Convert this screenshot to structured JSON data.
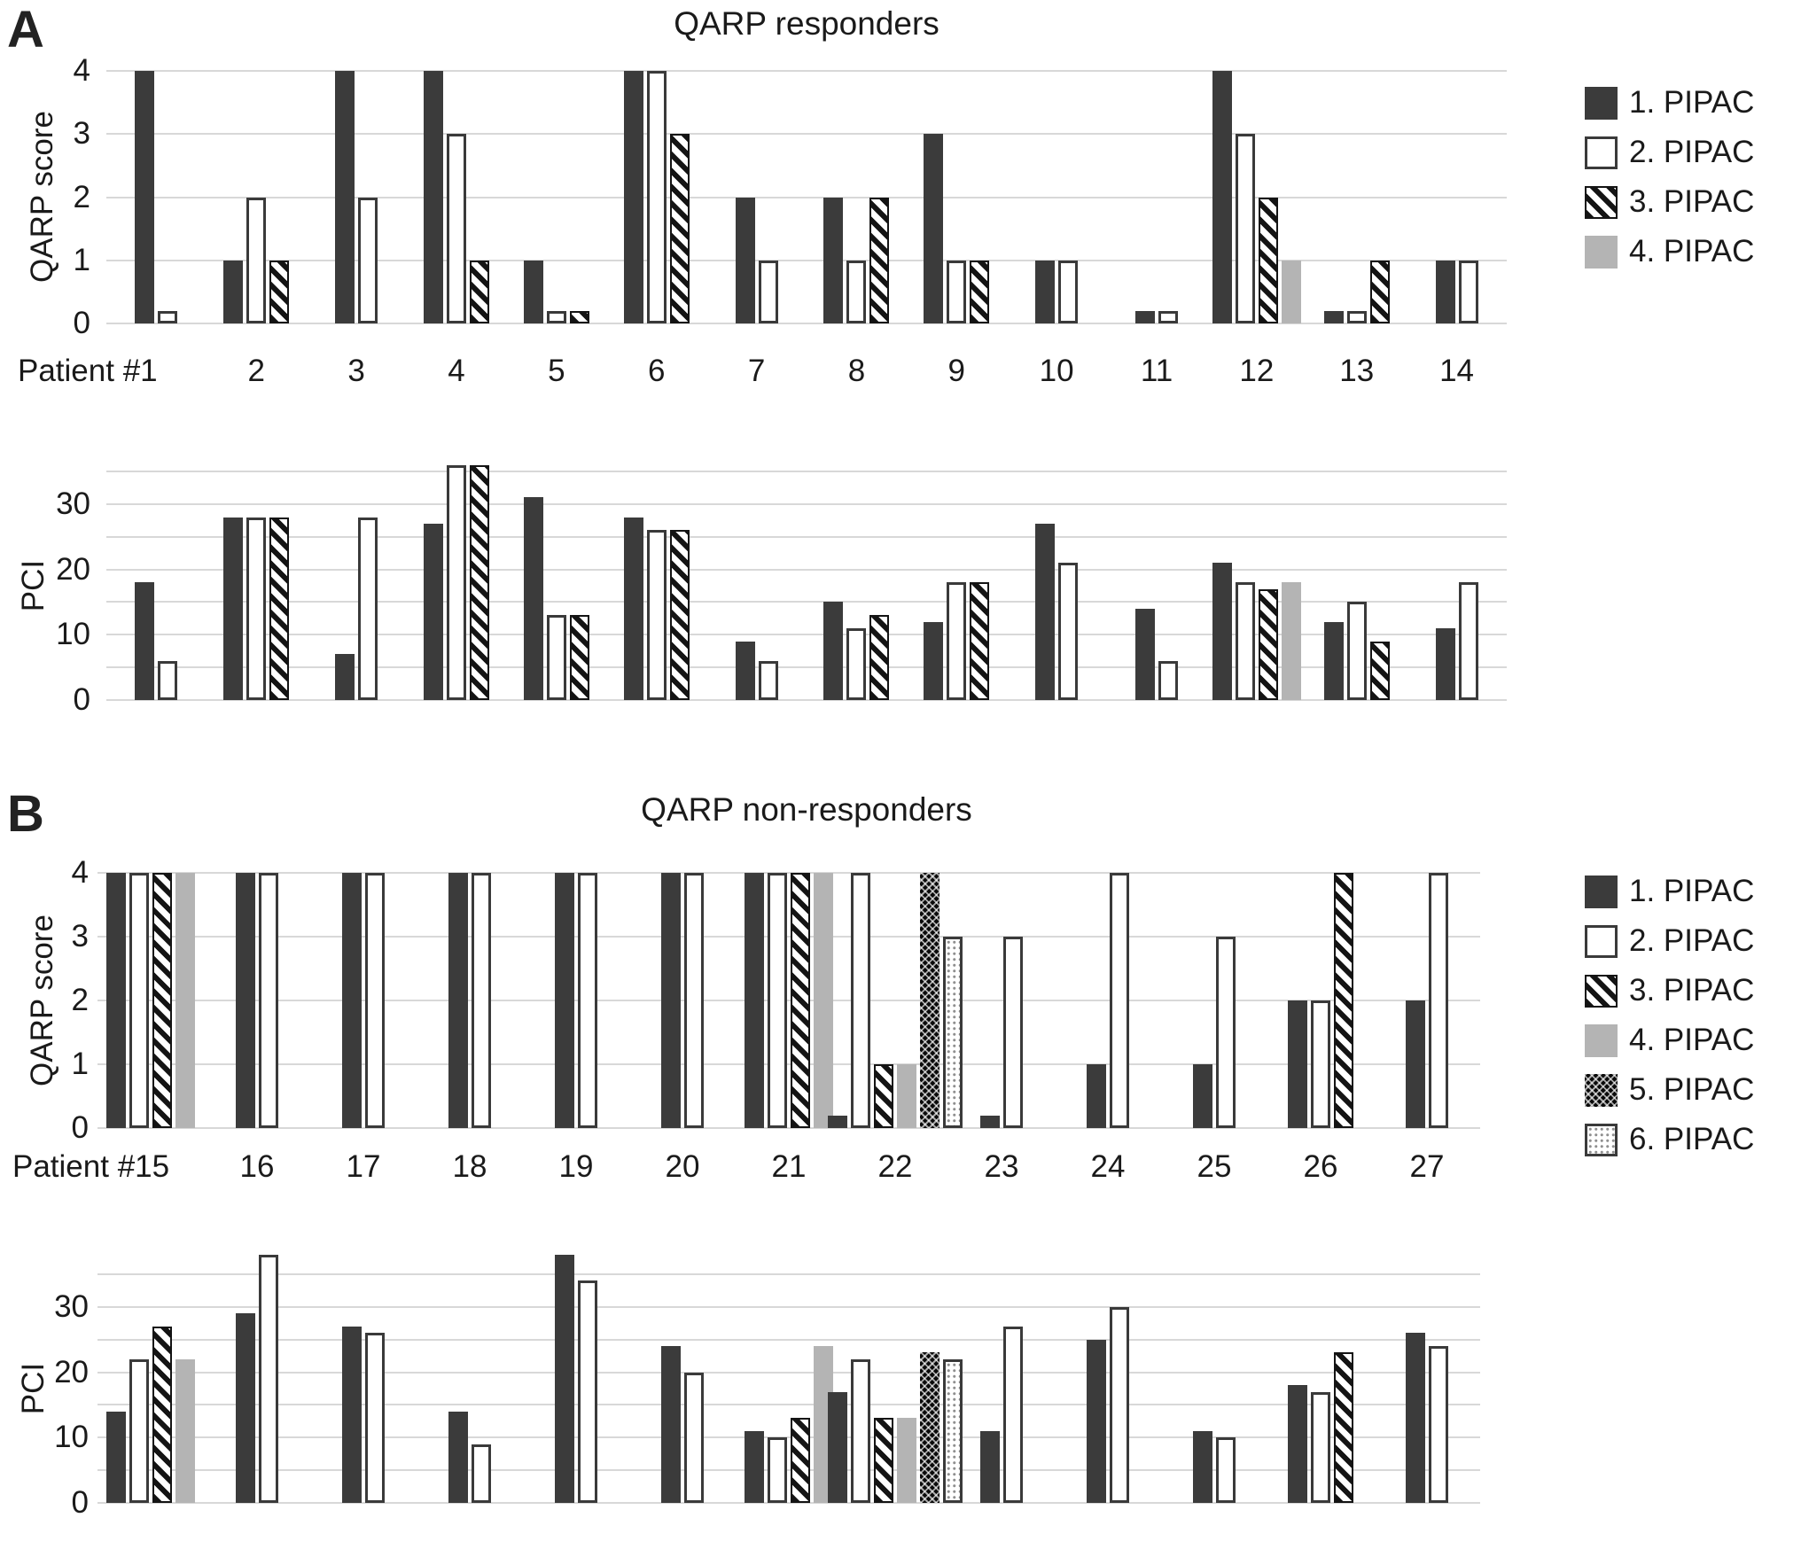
{
  "figure": {
    "panels": [
      {
        "panel_letter": "A",
        "title": "QARP responders",
        "legend": [
          {
            "label": "1. PIPAC",
            "style": "solid-dark"
          },
          {
            "label": "2. PIPAC",
            "style": "outline-white"
          },
          {
            "label": "3. PIPAC",
            "style": "diagonal-hatch"
          },
          {
            "label": "4. PIPAC",
            "style": "solid-lightgray"
          }
        ]
      },
      {
        "panel_letter": "B",
        "title": "QARP non-responders",
        "legend": [
          {
            "label": "1. PIPAC",
            "style": "solid-dark"
          },
          {
            "label": "2. PIPAC",
            "style": "outline-white"
          },
          {
            "label": "3. PIPAC",
            "style": "diagonal-hatch"
          },
          {
            "label": "4. PIPAC",
            "style": "solid-lightgray"
          },
          {
            "label": "5. PIPAC",
            "style": "checker-black"
          },
          {
            "label": "6. PIPAC",
            "style": "dotted-white"
          }
        ]
      }
    ]
  },
  "colors": {
    "bar_dark": "#3b3b3b",
    "bar_light_gray": "#b4b4b4",
    "bar_outline": "#3a3a3a",
    "gridline": "#d8d8d8",
    "text": "#1a1a1a"
  },
  "chart_data": [
    {
      "id": "a-qarp",
      "panel": "A",
      "type": "bar",
      "title": "QARP responders",
      "xlabel": "",
      "ylabel": "QARP score",
      "ylim": [
        0,
        4
      ],
      "yticks": [
        0,
        1,
        2,
        3,
        4
      ],
      "grid_step": 1,
      "grid": true,
      "legend_position": "right",
      "categories": [
        "Patient #1",
        "2",
        "3",
        "4",
        "5",
        "6",
        "7",
        "8",
        "9",
        "10",
        "11",
        "12",
        "13",
        "14"
      ],
      "series": [
        {
          "name": "1. PIPAC",
          "style": "solid-dark",
          "values": [
            4,
            1,
            4,
            4,
            1,
            4,
            2,
            2,
            3,
            1,
            0.2,
            4,
            0.2,
            1
          ]
        },
        {
          "name": "2. PIPAC",
          "style": "outline-white",
          "values": [
            0.2,
            2,
            2,
            3,
            0.2,
            4,
            1,
            1,
            1,
            1,
            0.2,
            3,
            0.2,
            1
          ]
        },
        {
          "name": "3. PIPAC",
          "style": "diagonal-hatch",
          "values": [
            null,
            1,
            null,
            1,
            0.2,
            3,
            null,
            2,
            1,
            null,
            null,
            2,
            1,
            null
          ]
        },
        {
          "name": "4. PIPAC",
          "style": "solid-lightgray",
          "values": [
            null,
            null,
            null,
            null,
            null,
            null,
            null,
            null,
            null,
            null,
            null,
            1,
            null,
            null
          ]
        }
      ]
    },
    {
      "id": "a-pci",
      "panel": "A",
      "type": "bar",
      "title": "",
      "xlabel": "",
      "ylabel": "PCI",
      "ylim": [
        0,
        35
      ],
      "yticks": [
        0,
        10,
        20,
        30
      ],
      "grid_step": 5,
      "grid": true,
      "categories": [
        "Patient #1",
        "2",
        "3",
        "4",
        "5",
        "6",
        "7",
        "8",
        "9",
        "10",
        "11",
        "12",
        "13",
        "14"
      ],
      "series": [
        {
          "name": "1. PIPAC",
          "style": "solid-dark",
          "values": [
            18,
            28,
            7,
            27,
            31,
            28,
            9,
            15,
            12,
            27,
            14,
            21,
            12,
            11
          ]
        },
        {
          "name": "2. PIPAC",
          "style": "outline-white",
          "values": [
            6,
            28,
            28,
            36,
            13,
            26,
            6,
            11,
            18,
            21,
            6,
            18,
            15,
            18
          ]
        },
        {
          "name": "3. PIPAC",
          "style": "diagonal-hatch",
          "values": [
            null,
            28,
            null,
            36,
            13,
            26,
            null,
            13,
            18,
            null,
            null,
            17,
            9,
            null
          ]
        },
        {
          "name": "4. PIPAC",
          "style": "solid-lightgray",
          "values": [
            null,
            null,
            null,
            null,
            null,
            null,
            null,
            null,
            null,
            null,
            null,
            18,
            null,
            null
          ]
        }
      ]
    },
    {
      "id": "b-qarp",
      "panel": "B",
      "type": "bar",
      "title": "QARP non-responders",
      "xlabel": "",
      "ylabel": "QARP score",
      "ylim": [
        0,
        4
      ],
      "yticks": [
        0,
        1,
        2,
        3,
        4
      ],
      "grid_step": 1,
      "grid": true,
      "legend_position": "right",
      "categories": [
        "Patient #15",
        "16",
        "17",
        "18",
        "19",
        "20",
        "21",
        "22",
        "23",
        "24",
        "25",
        "26",
        "27"
      ],
      "series": [
        {
          "name": "1. PIPAC",
          "style": "solid-dark",
          "values": [
            4,
            4,
            4,
            4,
            4,
            4,
            4,
            0.2,
            0.2,
            1,
            1,
            2,
            2
          ]
        },
        {
          "name": "2. PIPAC",
          "style": "outline-white",
          "values": [
            4,
            4,
            4,
            4,
            4,
            4,
            4,
            4,
            3,
            4,
            3,
            2,
            4
          ]
        },
        {
          "name": "3. PIPAC",
          "style": "diagonal-hatch",
          "values": [
            4,
            null,
            null,
            null,
            null,
            null,
            4,
            1,
            null,
            null,
            null,
            4,
            null
          ]
        },
        {
          "name": "4. PIPAC",
          "style": "solid-lightgray",
          "values": [
            4,
            null,
            null,
            null,
            null,
            null,
            4,
            1,
            null,
            null,
            null,
            null,
            null
          ]
        },
        {
          "name": "5. PIPAC",
          "style": "checker-black",
          "values": [
            null,
            null,
            null,
            null,
            null,
            null,
            null,
            4,
            null,
            null,
            null,
            null,
            null
          ]
        },
        {
          "name": "6. PIPAC",
          "style": "dotted-white",
          "values": [
            null,
            null,
            null,
            null,
            null,
            null,
            null,
            3,
            null,
            null,
            null,
            null,
            null
          ]
        }
      ]
    },
    {
      "id": "b-pci",
      "panel": "B",
      "type": "bar",
      "title": "",
      "xlabel": "",
      "ylabel": "PCI",
      "ylim": [
        0,
        35
      ],
      "yticks": [
        0,
        10,
        20,
        30
      ],
      "grid_step": 5,
      "grid": true,
      "categories": [
        "Patient #15",
        "16",
        "17",
        "18",
        "19",
        "20",
        "21",
        "22",
        "23",
        "24",
        "25",
        "26",
        "27"
      ],
      "series": [
        {
          "name": "1. PIPAC",
          "style": "solid-dark",
          "values": [
            14,
            29,
            27,
            14,
            38,
            24,
            11,
            17,
            11,
            25,
            11,
            18,
            26
          ]
        },
        {
          "name": "2. PIPAC",
          "style": "outline-white",
          "values": [
            22,
            38,
            26,
            9,
            34,
            20,
            10,
            22,
            27,
            30,
            10,
            17,
            24
          ]
        },
        {
          "name": "3. PIPAC",
          "style": "diagonal-hatch",
          "values": [
            27,
            null,
            null,
            null,
            null,
            null,
            13,
            13,
            null,
            null,
            null,
            23,
            null
          ]
        },
        {
          "name": "4. PIPAC",
          "style": "solid-lightgray",
          "values": [
            22,
            null,
            null,
            null,
            null,
            null,
            24,
            13,
            null,
            null,
            null,
            null,
            null
          ]
        },
        {
          "name": "5. PIPAC",
          "style": "checker-black",
          "values": [
            null,
            null,
            null,
            null,
            null,
            null,
            null,
            23,
            null,
            null,
            null,
            null,
            null
          ]
        },
        {
          "name": "6. PIPAC",
          "style": "dotted-white",
          "values": [
            null,
            null,
            null,
            null,
            null,
            null,
            null,
            22,
            null,
            null,
            null,
            null,
            null
          ]
        }
      ]
    }
  ]
}
